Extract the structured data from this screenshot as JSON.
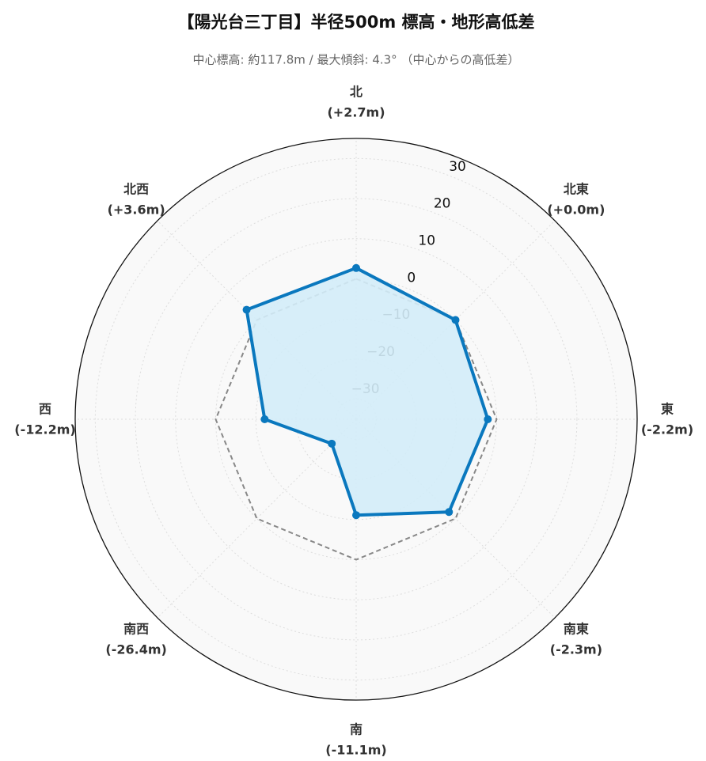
{
  "chart_data": {
    "type": "radar",
    "title": "【陽光台三丁目】半径500m 標高・地形高低差",
    "subtitle": "中心標高: 約117.8m / 最大傾斜: 4.3° （中心からの高低差）",
    "categories": [
      "北",
      "北東",
      "東",
      "南東",
      "南",
      "南西",
      "西",
      "北西"
    ],
    "values": [
      2.7,
      0.0,
      -2.2,
      -2.3,
      -11.1,
      -26.4,
      -12.2,
      3.6
    ],
    "value_labels": [
      "(+2.7m)",
      "(+0.0m)",
      "(-2.2m)",
      "(-2.3m)",
      "(-11.1m)",
      "(-26.4m)",
      "(-12.2m)",
      "(+3.6m)"
    ],
    "color": "#0a78be",
    "fill_color": "#d3ecf8",
    "baseline": 0,
    "baseline_color": "#888888",
    "ylim": [
      -35,
      35
    ],
    "yticks": [
      {
        "value": -30,
        "label": "−30"
      },
      {
        "value": -20,
        "label": "−20"
      },
      {
        "value": -10,
        "label": "−10"
      },
      0,
      10,
      20,
      30
    ],
    "grid": true
  }
}
